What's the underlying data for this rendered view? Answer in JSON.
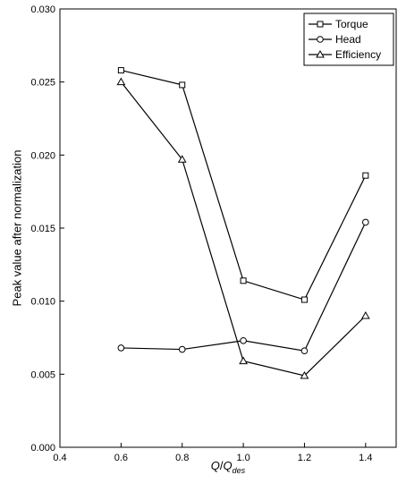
{
  "chart_data": {
    "type": "line",
    "title": "",
    "xlabel": {
      "main": "Q",
      "slash": "/",
      "q": "Q",
      "sub": "des"
    },
    "ylabel": "Peak value after normalization",
    "xlim": [
      0.4,
      1.5
    ],
    "ylim": [
      0.0,
      0.03
    ],
    "xticks": [
      "0.4",
      "0.6",
      "0.8",
      "1.0",
      "1.2",
      "1.4"
    ],
    "yticks": [
      "0.000",
      "0.005",
      "0.010",
      "0.015",
      "0.020",
      "0.025",
      "0.030"
    ],
    "x": [
      0.6,
      0.8,
      1.0,
      1.2,
      1.4
    ],
    "series": [
      {
        "name": "Torque",
        "marker": "square",
        "values": [
          0.0258,
          0.0248,
          0.0114,
          0.0101,
          0.0186
        ]
      },
      {
        "name": "Head",
        "marker": "circle",
        "values": [
          0.0068,
          0.0067,
          0.0073,
          0.0066,
          0.0154
        ]
      },
      {
        "name": "Efficiency",
        "marker": "triangle",
        "values": [
          0.025,
          0.0197,
          0.0059,
          0.0049,
          0.009
        ]
      }
    ],
    "legend_position": "top-right",
    "grid": false,
    "line_color": "#000000"
  }
}
